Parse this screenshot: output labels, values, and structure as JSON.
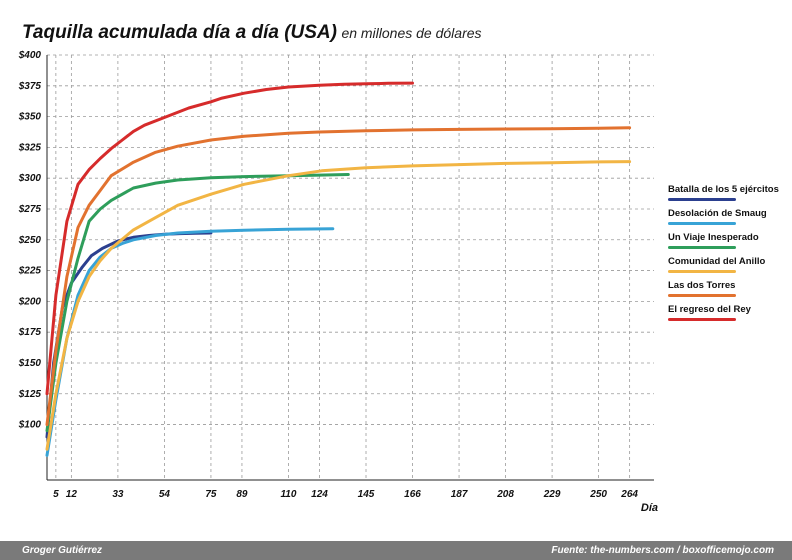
{
  "chart_data": {
    "type": "line",
    "title": "Taquilla acumulada día a día (USA)",
    "subtitle": "en millones de dólares",
    "xlabel": "Día",
    "ylabel": "",
    "xlim": [
      1,
      275
    ],
    "ylim": [
      55,
      400
    ],
    "y_ticks": [
      100,
      125,
      150,
      175,
      200,
      225,
      250,
      275,
      300,
      325,
      350,
      375,
      400
    ],
    "y_tick_labels": [
      "$100",
      "$125",
      "$150",
      "$175",
      "$200",
      "$225",
      "$250",
      "$275",
      "$300",
      "$325",
      "$350",
      "$375",
      "$400"
    ],
    "x_ticks": [
      5,
      12,
      33,
      54,
      75,
      89,
      110,
      124,
      145,
      166,
      187,
      208,
      229,
      250,
      264
    ],
    "x_tick_labels": [
      "5",
      "12",
      "33",
      "54",
      "75",
      "89",
      "110",
      "124",
      "145",
      "166",
      "187",
      "208",
      "229",
      "250",
      "264"
    ],
    "grid": true,
    "legend_position": "right",
    "series": [
      {
        "name": "Batalla de los 5 ejércitos",
        "color": "#2b3f8f",
        "x": [
          1,
          4,
          8,
          12,
          17,
          21,
          26,
          33,
          40,
          47,
          54,
          61,
          68,
          75
        ],
        "y": [
          90,
          150,
          195,
          215,
          228,
          237,
          243,
          249,
          252,
          253.5,
          254.5,
          255,
          255.3,
          255.5
        ]
      },
      {
        "name": "Desolación de Smaug",
        "color": "#38a3d6",
        "x": [
          1,
          5,
          10,
          15,
          20,
          25,
          30,
          35,
          40,
          50,
          60,
          75,
          90,
          110,
          130
        ],
        "y": [
          75,
          120,
          170,
          205,
          225,
          236,
          243,
          247,
          250,
          253.5,
          255.5,
          257,
          257.8,
          258.5,
          259
        ]
      },
      {
        "name": "Un Viaje Inesperado",
        "color": "#2e9e5b",
        "x": [
          1,
          5,
          10,
          15,
          20,
          25,
          30,
          40,
          50,
          60,
          75,
          90,
          110,
          124,
          137
        ],
        "y": [
          95,
          150,
          200,
          235,
          265,
          275,
          282,
          292,
          296,
          298.5,
          300.3,
          301.3,
          302,
          302.5,
          303
        ]
      },
      {
        "name": "Comunidad del Anillo",
        "color": "#f2b544",
        "x": [
          1,
          5,
          10,
          15,
          20,
          25,
          30,
          40,
          50,
          60,
          75,
          90,
          110,
          125,
          145,
          166,
          187,
          208,
          229,
          250,
          264
        ],
        "y": [
          80,
          125,
          170,
          200,
          220,
          233,
          243,
          258,
          268,
          278,
          287,
          295,
          302,
          306,
          308.5,
          310,
          311,
          312,
          312.6,
          313.2,
          313.5
        ]
      },
      {
        "name": "Las dos Torres",
        "color": "#e2722f",
        "x": [
          1,
          5,
          10,
          15,
          20,
          25,
          30,
          40,
          50,
          60,
          75,
          90,
          110,
          124,
          145,
          166,
          187,
          208,
          229,
          250,
          264
        ],
        "y": [
          100,
          160,
          220,
          260,
          278,
          290,
          302,
          313,
          321,
          326,
          331,
          334,
          336.5,
          337.5,
          338.5,
          339.2,
          339.6,
          339.9,
          340.2,
          340.6,
          341
        ]
      },
      {
        "name": "El regreso del Rey",
        "color": "#d62b2b",
        "x": [
          1,
          5,
          10,
          15,
          20,
          25,
          30,
          35,
          40,
          45,
          55,
          65,
          75,
          80,
          90,
          100,
          110,
          124,
          135,
          145,
          155,
          166
        ],
        "y": [
          125,
          205,
          265,
          295,
          307,
          316,
          324,
          331,
          338,
          343,
          350,
          357,
          362,
          365,
          369,
          372,
          374,
          375.5,
          376.2,
          376.6,
          377,
          377.2
        ]
      }
    ]
  },
  "footer": {
    "author": "Groger Gutiérrez",
    "source": "Fuente: the-numbers.com / boxofficemojo.com"
  }
}
